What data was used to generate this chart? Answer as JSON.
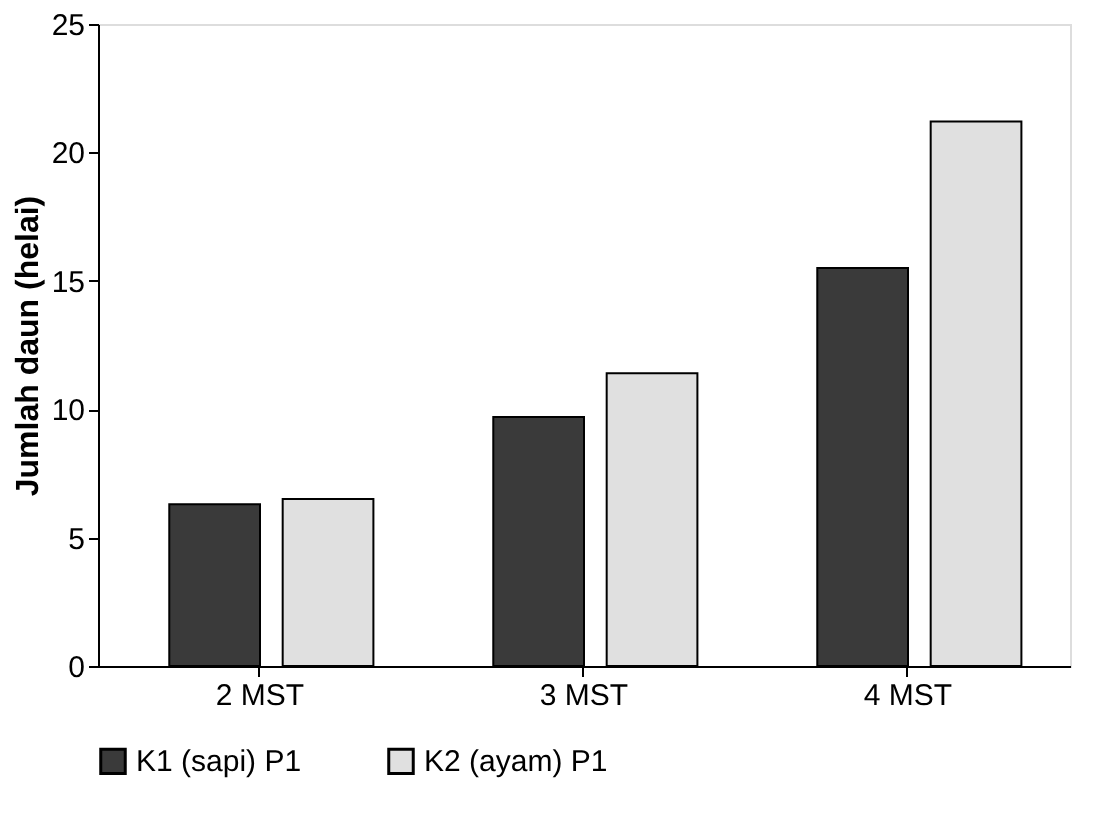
{
  "chart_data": {
    "type": "bar",
    "ylabel": "Jumlah daun (helai)",
    "categories": [
      "2 MST",
      "3 MST",
      "4 MST"
    ],
    "series": [
      {
        "name": "K1 (sapi) P1",
        "color": "#3a3a3a",
        "values": [
          6.3,
          9.7,
          15.5
        ]
      },
      {
        "name": "K2 (ayam) P1",
        "color": "#e0e0e0",
        "values": [
          6.5,
          11.4,
          21.2
        ]
      }
    ],
    "ylim": [
      0,
      25
    ],
    "yticks": [
      0,
      5,
      10,
      15,
      20,
      25
    ],
    "grid": false,
    "legend": "bottom"
  }
}
